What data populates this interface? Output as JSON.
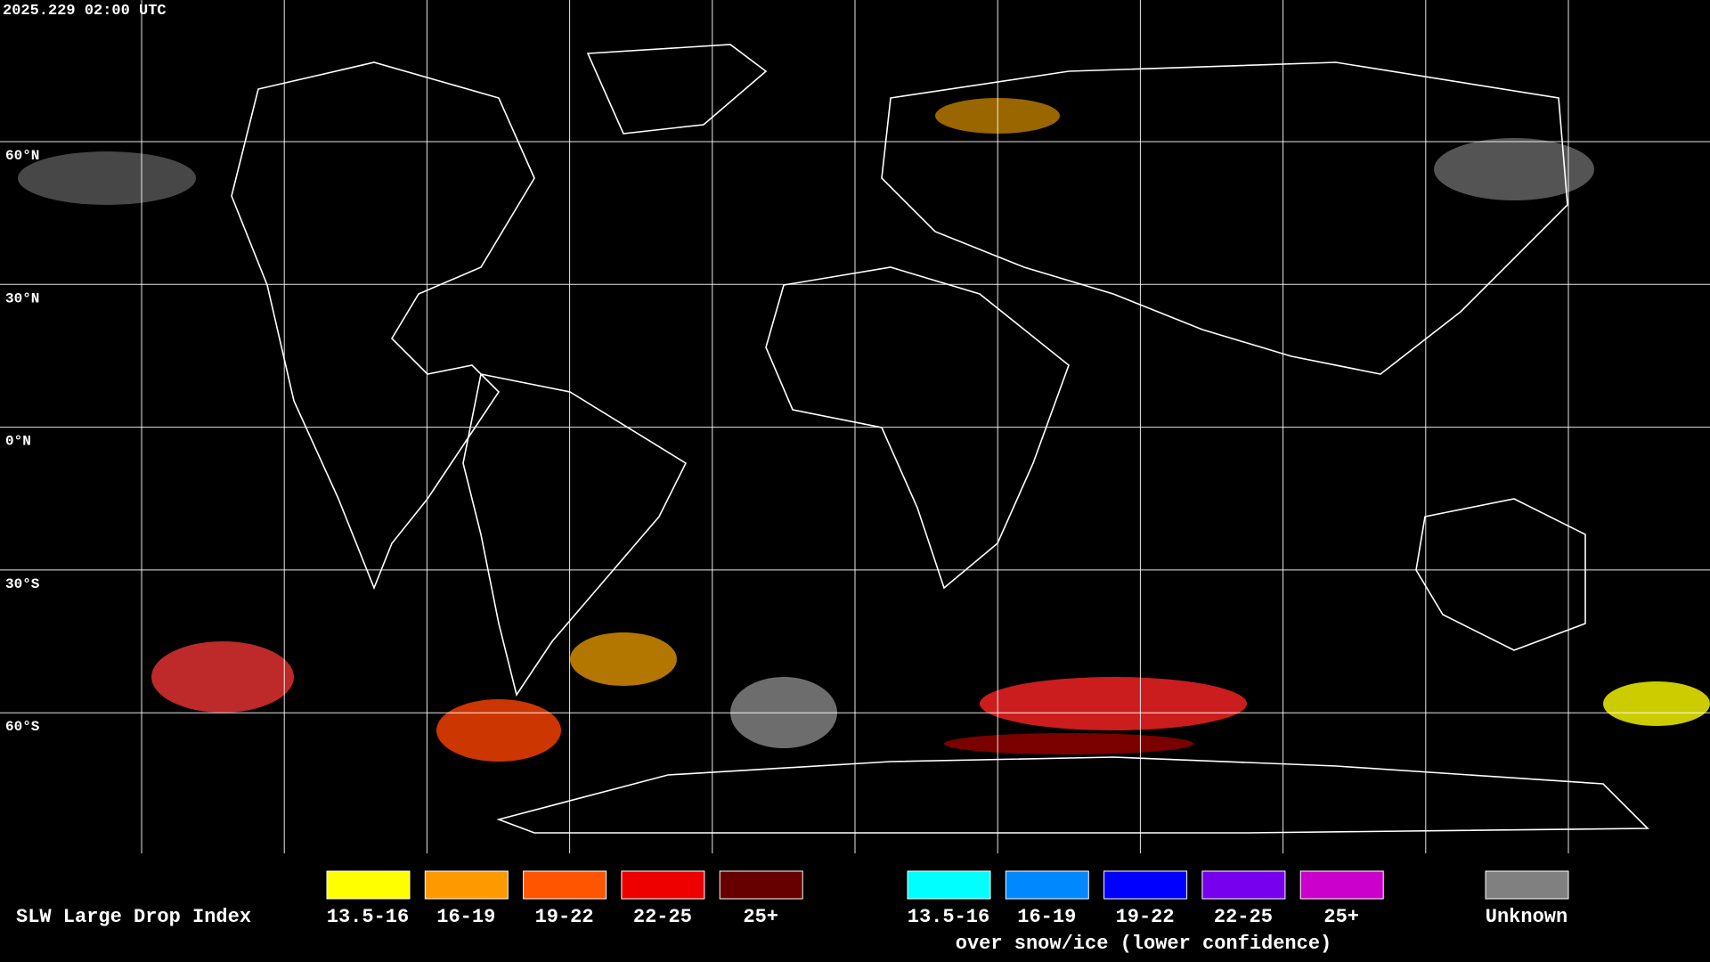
{
  "header": {
    "timestamp": "2025.229 02:00 UTC"
  },
  "map": {
    "latitude_labels": [
      "60°N",
      "30°N",
      "0°N",
      "30°S",
      "60°S"
    ]
  },
  "legend": {
    "title": "SLW Large Drop Index",
    "standard": [
      {
        "label": "13.5-16",
        "color": "#ffff00"
      },
      {
        "label": "16-19",
        "color": "#ff9900"
      },
      {
        "label": "19-22",
        "color": "#ff5500"
      },
      {
        "label": "22-25",
        "color": "#ee0000"
      },
      {
        "label": "25+",
        "color": "#660000"
      }
    ],
    "snow_ice": [
      {
        "label": "13.5-16",
        "color": "#00ffff"
      },
      {
        "label": "16-19",
        "color": "#0088ff"
      },
      {
        "label": "19-22",
        "color": "#0000ff"
      },
      {
        "label": "22-25",
        "color": "#7700ee"
      },
      {
        "label": "25+",
        "color": "#cc00cc"
      }
    ],
    "snow_ice_caption": "over snow/ice (lower confidence)",
    "unknown": {
      "label": "Unknown",
      "color": "#808080"
    }
  }
}
